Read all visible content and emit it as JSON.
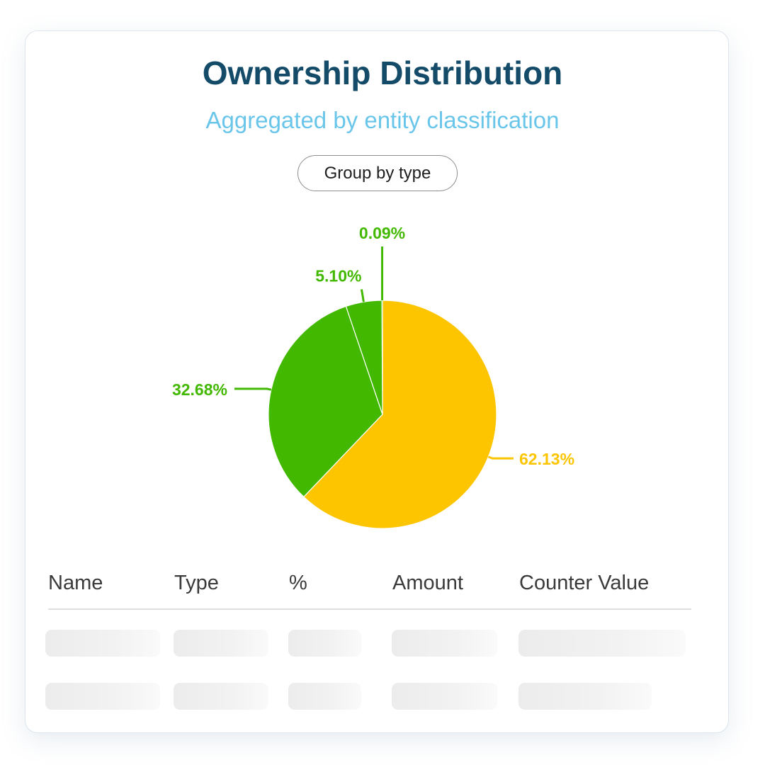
{
  "header": {
    "title": "Ownership Distribution",
    "subtitle": "Aggregated by entity classification"
  },
  "controls": {
    "group_button_label": "Group by type"
  },
  "chart_data": {
    "type": "pie",
    "slices": [
      {
        "label": "62.13%",
        "value": 62.13,
        "color": "#fcc500"
      },
      {
        "label": "32.68%",
        "value": 32.68,
        "color": "#42b900"
      },
      {
        "label": "5.10%",
        "value": 5.1,
        "color": "#42b900"
      },
      {
        "label": "0.09%",
        "value": 0.09,
        "color": "#42b900"
      }
    ]
  },
  "table": {
    "columns": [
      "Name",
      "Type",
      "%",
      "Amount",
      "Counter Value"
    ],
    "rows_loading": 2
  },
  "colors": {
    "title": "#134b68",
    "subtitle": "#69c6ea",
    "accent_yellow": "#fcc500",
    "accent_green": "#42b900"
  }
}
